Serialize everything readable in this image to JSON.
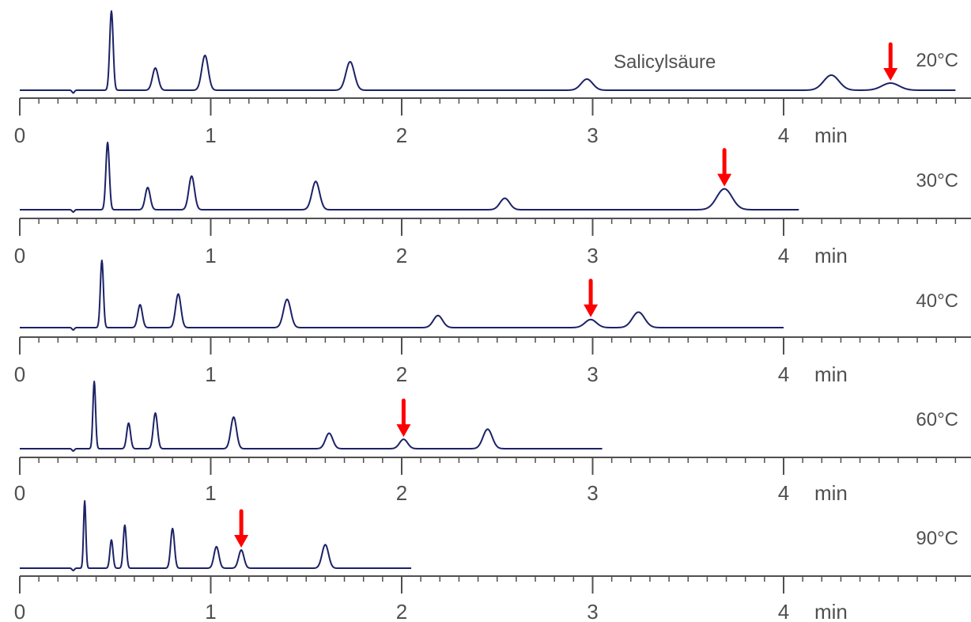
{
  "chart_data": {
    "type": "line",
    "annotation": "Salicylsäure",
    "x_unit": "min",
    "xlim": [
      0,
      4.9
    ],
    "x_ticks": [
      "0",
      "1",
      "2",
      "3",
      "4"
    ],
    "colors": {
      "trace": "#1c2266",
      "arrow": "#ff0000",
      "axis": "#505050",
      "text": "#505050"
    },
    "panels": [
      {
        "label": "20°C",
        "trace_end": 4.9,
        "peaks": [
          {
            "t": 0.48,
            "h": 1.0,
            "w": 0.009
          },
          {
            "t": 0.71,
            "h": 0.28,
            "w": 0.015
          },
          {
            "t": 0.97,
            "h": 0.44,
            "w": 0.017
          },
          {
            "t": 1.73,
            "h": 0.36,
            "w": 0.022
          },
          {
            "t": 2.97,
            "h": 0.14,
            "w": 0.03
          },
          {
            "t": 4.25,
            "h": 0.19,
            "w": 0.04
          },
          {
            "t": 4.56,
            "h": 0.09,
            "w": 0.045
          }
        ],
        "marked_peak": 4.56
      },
      {
        "label": "30°C",
        "trace_end": 4.08,
        "peaks": [
          {
            "t": 0.46,
            "h": 1.0,
            "w": 0.009
          },
          {
            "t": 0.67,
            "h": 0.33,
            "w": 0.013
          },
          {
            "t": 0.9,
            "h": 0.5,
            "w": 0.015
          },
          {
            "t": 1.55,
            "h": 0.42,
            "w": 0.02
          },
          {
            "t": 2.54,
            "h": 0.17,
            "w": 0.025
          },
          {
            "t": 3.69,
            "h": 0.31,
            "w": 0.04
          }
        ],
        "marked_peak": 3.69
      },
      {
        "label": "40°C",
        "trace_end": 4.0,
        "peaks": [
          {
            "t": 0.43,
            "h": 1.0,
            "w": 0.008
          },
          {
            "t": 0.63,
            "h": 0.34,
            "w": 0.012
          },
          {
            "t": 0.83,
            "h": 0.5,
            "w": 0.014
          },
          {
            "t": 1.4,
            "h": 0.42,
            "w": 0.019
          },
          {
            "t": 2.19,
            "h": 0.18,
            "w": 0.024
          },
          {
            "t": 2.99,
            "h": 0.12,
            "w": 0.03
          },
          {
            "t": 3.24,
            "h": 0.23,
            "w": 0.032
          }
        ],
        "marked_peak": 2.99
      },
      {
        "label": "60°C",
        "trace_end": 3.05,
        "peaks": [
          {
            "t": 0.39,
            "h": 1.0,
            "w": 0.007
          },
          {
            "t": 0.57,
            "h": 0.38,
            "w": 0.01
          },
          {
            "t": 0.71,
            "h": 0.53,
            "w": 0.011
          },
          {
            "t": 1.12,
            "h": 0.47,
            "w": 0.015
          },
          {
            "t": 1.62,
            "h": 0.23,
            "w": 0.019
          },
          {
            "t": 2.01,
            "h": 0.14,
            "w": 0.021
          },
          {
            "t": 2.45,
            "h": 0.29,
            "w": 0.024
          }
        ],
        "marked_peak": 2.01
      },
      {
        "label": "90°C",
        "trace_end": 2.05,
        "peaks": [
          {
            "t": 0.34,
            "h": 1.0,
            "w": 0.006
          },
          {
            "t": 0.48,
            "h": 0.42,
            "w": 0.008
          },
          {
            "t": 0.55,
            "h": 0.64,
            "w": 0.008
          },
          {
            "t": 0.8,
            "h": 0.59,
            "w": 0.01
          },
          {
            "t": 1.03,
            "h": 0.32,
            "w": 0.013
          },
          {
            "t": 1.16,
            "h": 0.27,
            "w": 0.014
          },
          {
            "t": 1.6,
            "h": 0.35,
            "w": 0.017
          }
        ],
        "marked_peak": 1.16
      }
    ]
  }
}
